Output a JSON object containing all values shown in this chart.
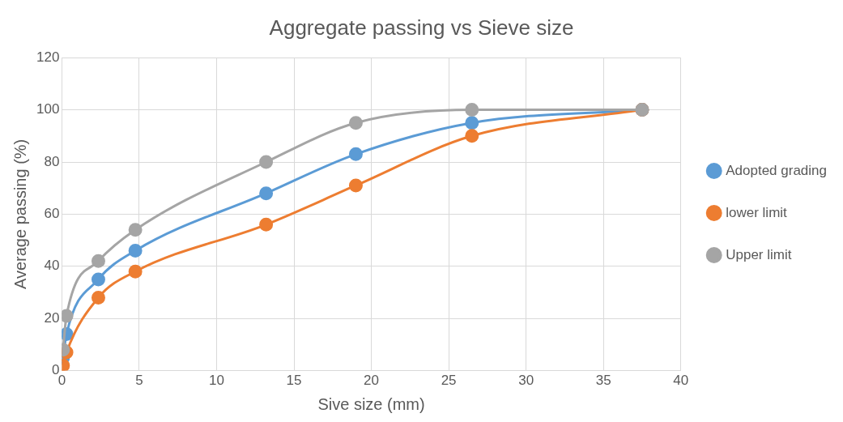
{
  "chart_data": {
    "type": "line",
    "title": "Aggregate passing vs Sieve size",
    "xlabel": "Sive size (mm)",
    "ylabel": "Average passing (%)",
    "x": [
      0.075,
      0.3,
      2.36,
      4.75,
      13.2,
      19,
      26.5,
      37.5
    ],
    "series": [
      {
        "name": "Adopted grading",
        "color": "#5b9bd5",
        "values": [
          5,
          14,
          35,
          46,
          68,
          83,
          95,
          100
        ]
      },
      {
        "name": "lower limit",
        "color": "#ed7d31",
        "values": [
          2,
          7,
          28,
          38,
          56,
          71,
          90,
          100
        ]
      },
      {
        "name": "Upper limit",
        "color": "#a5a5a5",
        "values": [
          8,
          21,
          42,
          54,
          80,
          95,
          100,
          100
        ]
      }
    ],
    "xlim": [
      0,
      40
    ],
    "xticks": [
      0,
      5,
      10,
      15,
      20,
      25,
      30,
      35,
      40
    ],
    "ylim": [
      0,
      120
    ],
    "yticks": [
      0,
      20,
      40,
      60,
      80,
      100,
      120
    ],
    "grid": true,
    "legend": "right",
    "marker": "circle",
    "line_style": "solid"
  }
}
